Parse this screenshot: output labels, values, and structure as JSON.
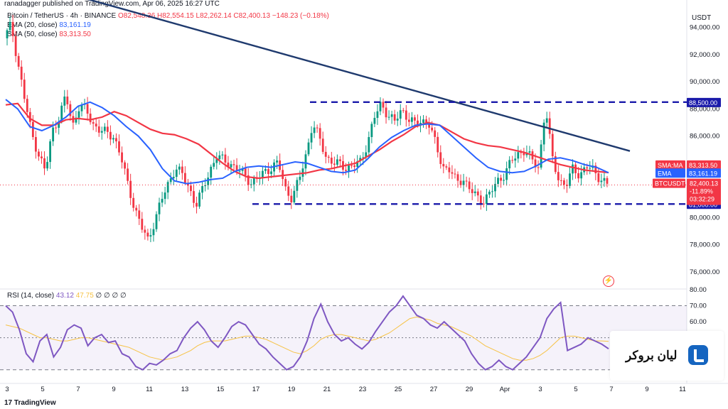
{
  "header": {
    "publisher": "ranadagger published on TradingView.com, Apr 06, 2025 16:27 UTC",
    "symbol": "Bitcoin / TetherUS · 4h · BINANCE",
    "ohlc": "O82,548.36 H82,554.15 L82,262.14 C82,400.13 −148.23 (−0.18%)",
    "ema_label": "EMA (20, close)",
    "ema_value": "83,161.19",
    "sma_label": "SMA (50, close)",
    "sma_value": "83,313.50"
  },
  "rsi_header": {
    "label": "RSI (14, close)",
    "value1": "43.12",
    "value2": "47.75",
    "placeholders": "∅ ∅ ∅ ∅"
  },
  "currency": "USDT",
  "footer": "TradingView",
  "watermark": "لیان بروکر",
  "colors": {
    "up": "#089981",
    "down": "#f23645",
    "ema": "#2962ff",
    "sma": "#f23645",
    "trend": "#1f3a6e",
    "level": "#1a1aaa",
    "rsi": "#7e57c2",
    "rsi_ma": "#f6c244"
  },
  "chart_data": [
    {
      "type": "candlestick",
      "symbol": "BTCUSDT",
      "timeframe": "4h",
      "ylim": [
        75000,
        95500
      ],
      "y_ticks": [
        "94,000.00",
        "92,000.00",
        "90,000.00",
        "88,000.00",
        "86,000.00",
        "84,000.00",
        "82,000.00",
        "80,000.00",
        "78,000.00",
        "76,000.00"
      ],
      "y_tick_values": [
        94000,
        92000,
        90000,
        88000,
        86000,
        84000,
        82000,
        80000,
        78000,
        76000
      ],
      "x_ticks": [
        "3",
        "5",
        "7",
        "9",
        "11",
        "13",
        "15",
        "17",
        "19",
        "21",
        "23",
        "25",
        "27",
        "29",
        "Apr",
        "3",
        "5",
        "7",
        "9",
        "11"
      ],
      "close_path": [
        93200,
        94200,
        91400,
        88600,
        86200,
        84700,
        83300,
        86400,
        87400,
        88900,
        86800,
        88300,
        87800,
        86900,
        86400,
        86200,
        86000,
        84500,
        82500,
        80800,
        79300,
        78300,
        79900,
        81300,
        82600,
        83700,
        83100,
        82200,
        80900,
        82100,
        83500,
        84500,
        84200,
        84000,
        83500,
        83200,
        82600,
        82800,
        83400,
        83700,
        84000,
        82200,
        81400,
        82700,
        84600,
        86900,
        85800,
        84500,
        84000,
        83900,
        83700,
        83800,
        84100,
        85500,
        87300,
        88400,
        87600,
        87000,
        88000,
        87300,
        86800,
        87200,
        86900,
        85300,
        83800,
        83500,
        82600,
        82900,
        82000,
        81500,
        81300,
        81800,
        82700,
        83200,
        84100,
        84700,
        85000,
        84200,
        83700,
        88200,
        84300,
        82800,
        82300,
        83600,
        83200,
        83700,
        83500,
        82900,
        82400
      ],
      "ema20": [
        88700,
        88000,
        86700,
        86400,
        86800,
        87400,
        88200,
        88500,
        88100,
        87500,
        86700,
        86000,
        85000,
        83600,
        82700,
        82500,
        82600,
        82800,
        82900,
        83400,
        83700,
        83800,
        83700,
        83900,
        84100,
        84000,
        83700,
        83400,
        83300,
        83500,
        84300,
        85200,
        85900,
        86400,
        86800,
        86900,
        86800,
        86000,
        85200,
        84400,
        83700,
        83400,
        83300,
        83400,
        83800,
        84300,
        84400,
        84200,
        83900,
        83700,
        83300
      ],
      "sma50": [
        88300,
        88400,
        87300,
        86800,
        86800,
        87200,
        87300,
        87200,
        87400,
        87800,
        87500,
        87000,
        86500,
        86200,
        86100,
        85800,
        85400,
        84700,
        84000,
        83400,
        83000,
        82900,
        83000,
        83100,
        83200,
        83300,
        83500,
        83600,
        83800,
        84000,
        84500,
        85000,
        85600,
        86100,
        86700,
        87000,
        86800,
        86300,
        85800,
        85500,
        85300,
        85200,
        85000,
        84800,
        84500,
        84200,
        83900,
        83700,
        83500,
        83400,
        83313
      ],
      "trendline": [
        [
          0,
          96500
        ],
        [
          1,
          84900
        ]
      ],
      "resistance": 88500,
      "support": 81000,
      "last_price": "82,400.13",
      "labels": {
        "sma_tag": "SMA:MA",
        "sma_price": "83,313.50",
        "ema_tag": "EMA",
        "ema_price": "83,161.19",
        "sym_tag": "BTCUSDT",
        "last_price": "82,400.13",
        "change_pct": "-11.89%",
        "countdown": "03:32:29",
        "resistance_label": "88,500.00",
        "support_label": "81,000.00"
      }
    },
    {
      "type": "line",
      "name": "RSI (14, close)",
      "ylim": [
        25,
        80
      ],
      "y_ticks": [
        "80.00",
        "70.00",
        "60.00"
      ],
      "y_tick_values": [
        80,
        70,
        60
      ],
      "band": [
        30,
        70
      ],
      "rsi": [
        70,
        66,
        55,
        40,
        35,
        48,
        52,
        38,
        44,
        55,
        58,
        56,
        45,
        50,
        52,
        47,
        48,
        40,
        38,
        32,
        30,
        34,
        33,
        36,
        40,
        42,
        50,
        56,
        60,
        55,
        48,
        44,
        50,
        57,
        60,
        58,
        52,
        46,
        43,
        38,
        34,
        30,
        32,
        38,
        48,
        62,
        71,
        60,
        52,
        48,
        50,
        46,
        43,
        47,
        54,
        60,
        66,
        70,
        76,
        70,
        64,
        62,
        58,
        56,
        60,
        56,
        52,
        48,
        40,
        34,
        30,
        32,
        36,
        32,
        30,
        34,
        38,
        44,
        50,
        62,
        68,
        72,
        42,
        44,
        46,
        50,
        48,
        46,
        43.12
      ],
      "rsi_ma": [
        58,
        57,
        56,
        54,
        52,
        50,
        50,
        49,
        48,
        48,
        49,
        50,
        50,
        49,
        48,
        47,
        46,
        45,
        44,
        42,
        40,
        38,
        37,
        36,
        37,
        38,
        40,
        42,
        45,
        47,
        48,
        48,
        48,
        49,
        50,
        51,
        51,
        50,
        49,
        47,
        45,
        43,
        41,
        40,
        42,
        45,
        49,
        51,
        52,
        52,
        51,
        50,
        49,
        48,
        49,
        51,
        53,
        56,
        59,
        62,
        63,
        62,
        61,
        59,
        58,
        57,
        55,
        53,
        51,
        48,
        45,
        43,
        41,
        39,
        37,
        36,
        36,
        37,
        39,
        42,
        46,
        50,
        51,
        51,
        50,
        49,
        48,
        48,
        47.75
      ]
    }
  ]
}
